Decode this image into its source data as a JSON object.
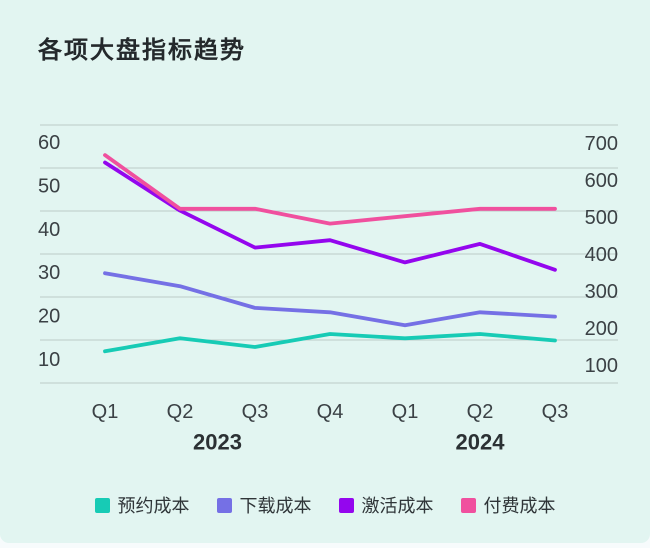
{
  "title": "各项大盘指标趋势",
  "colors": {
    "page_background": "#F7FBFC",
    "panel_background": "#E2F5F1",
    "gridline": "#BCCAC8",
    "title_text": "#24292C",
    "axis_text": "#3B4145",
    "year_text": "#2B3134",
    "legend_text": "#2F3538"
  },
  "chart_data": {
    "type": "line",
    "title": "各项大盘指标趋势",
    "categories": [
      "Q1",
      "Q2",
      "Q3",
      "Q4",
      "Q1",
      "Q2",
      "Q3"
    ],
    "year_groups": [
      {
        "label": "2023",
        "quarters": [
          0,
          3
        ]
      },
      {
        "label": "2024",
        "quarters": [
          4,
          6
        ]
      }
    ],
    "left_axis": {
      "ticks": [
        "60",
        "50",
        "40",
        "30",
        "20",
        "10"
      ],
      "min": 10,
      "max": 60
    },
    "right_axis": {
      "ticks": [
        "700",
        "600",
        "500",
        "400",
        "300",
        "200",
        "100"
      ],
      "min": 100,
      "max": 700
    },
    "grid": true,
    "legend_position": "bottom",
    "series": [
      {
        "name": "预约成本",
        "color": "#17CBB5",
        "axis": "left",
        "values": [
          12,
          15,
          13,
          16,
          15,
          16,
          14.5
        ]
      },
      {
        "name": "下载成本",
        "color": "#7570E5",
        "axis": "left",
        "values": [
          30,
          27,
          22,
          21,
          18,
          21,
          20
        ]
      },
      {
        "name": "激活成本",
        "color": "#9406EE",
        "axis": "right",
        "values": [
          650,
          520,
          420,
          440,
          380,
          430,
          360
        ]
      },
      {
        "name": "付费成本",
        "color": "#F0509E",
        "axis": "right",
        "values": [
          670,
          525,
          525,
          485,
          505,
          525,
          525
        ]
      }
    ]
  }
}
